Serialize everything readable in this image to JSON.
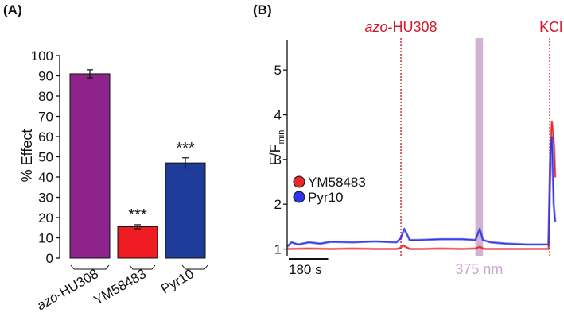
{
  "panels": {
    "a_label": "(A)",
    "b_label": "(B)"
  },
  "chart_data": [
    {
      "type": "bar",
      "ylabel": "% Effect",
      "ylim": [
        0,
        100
      ],
      "yticks": [
        0,
        10,
        20,
        30,
        40,
        50,
        60,
        70,
        80,
        90,
        100
      ],
      "categories": [
        "azo-HU308",
        "YM58483",
        "Pyr10"
      ],
      "category_italic_part": [
        "azo",
        "",
        ""
      ],
      "values": [
        91,
        15.5,
        47
      ],
      "errors": [
        2,
        1,
        2.5
      ],
      "colors": [
        "#8e248b",
        "#ef1c24",
        "#1f3c9b"
      ],
      "significance": [
        "",
        "***",
        "***"
      ]
    },
    {
      "type": "line",
      "ylabel": "F/F",
      "ylabel_sub": "min",
      "ylim": [
        0.85,
        5.5
      ],
      "yticks": [
        1,
        2,
        3,
        4,
        5
      ],
      "x_units": "s",
      "xlim": [
        0,
        1225
      ],
      "scale_bar": {
        "label": "180 s",
        "length": 180
      },
      "events": [
        {
          "label": "azo-HU308",
          "italic_part": "azo",
          "x": 520,
          "color": "#d3182b"
        },
        {
          "label": "KCl",
          "x": 1200,
          "color": "#d3182b"
        }
      ],
      "shaded_region": {
        "label": "375 nm",
        "x_start": 860,
        "x_end": 895,
        "color": "#c9a6cd"
      },
      "legend_position": "left",
      "series": [
        {
          "name": "YM58483",
          "color": "#e8282b",
          "x": [
            0,
            100,
            200,
            300,
            400,
            500,
            515,
            530,
            560,
            620,
            700,
            800,
            860,
            880,
            900,
            1000,
            1100,
            1195,
            1203,
            1210,
            1220,
            1225
          ],
          "y": [
            1.0,
            1.01,
            1.0,
            1.01,
            1.0,
            1.0,
            1.02,
            1.08,
            1.0,
            1.0,
            1.01,
            1.0,
            1.01,
            1.05,
            1.0,
            1.0,
            1.0,
            1.0,
            3.1,
            3.85,
            3.3,
            2.6
          ]
        },
        {
          "name": "Pyr10",
          "color": "#2f36e6",
          "x": [
            0,
            20,
            50,
            100,
            150,
            200,
            300,
            400,
            500,
            520,
            535,
            560,
            600,
            700,
            800,
            860,
            880,
            895,
            930,
            1000,
            1100,
            1195,
            1203,
            1210,
            1218,
            1225
          ],
          "y": [
            1.05,
            1.15,
            1.1,
            1.15,
            1.12,
            1.16,
            1.15,
            1.17,
            1.15,
            1.25,
            1.45,
            1.2,
            1.2,
            1.22,
            1.22,
            1.2,
            1.45,
            1.2,
            1.15,
            1.12,
            1.1,
            1.1,
            3.0,
            3.5,
            2.0,
            1.6
          ]
        }
      ]
    }
  ]
}
